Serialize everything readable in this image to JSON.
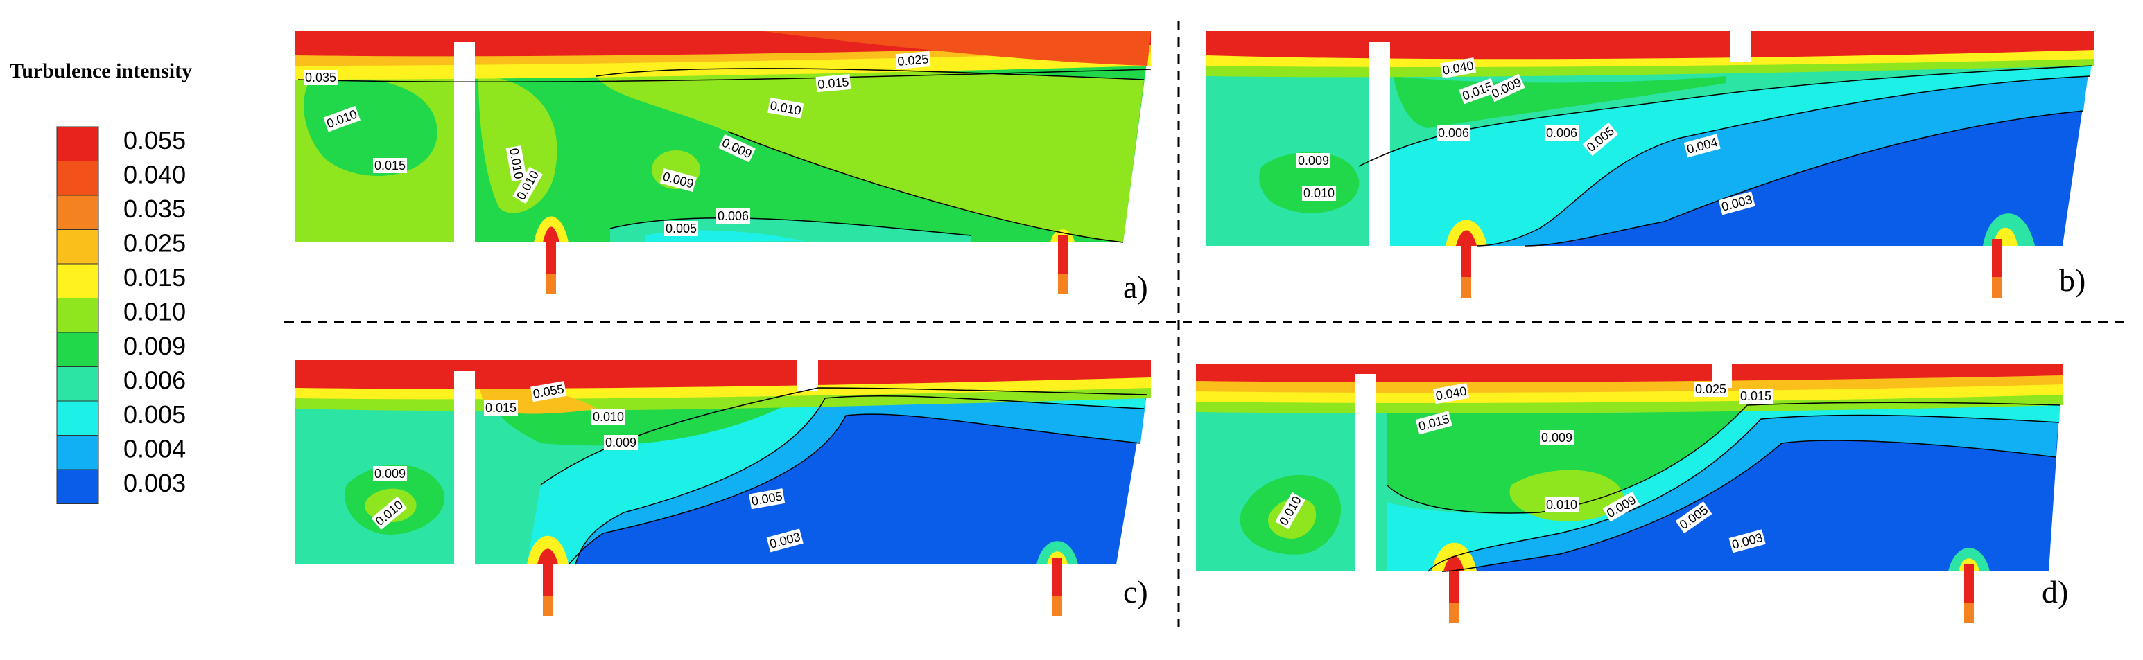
{
  "legend": {
    "title": "Turbulence intensity",
    "levels": [
      {
        "value": "0.055",
        "color": "#e8221c"
      },
      {
        "value": "0.040",
        "color": "#f2521a"
      },
      {
        "value": "0.035",
        "color": "#f58220"
      },
      {
        "value": "0.025",
        "color": "#fbbf1c"
      },
      {
        "value": "0.015",
        "color": "#fff21f"
      },
      {
        "value": "0.010",
        "color": "#8fe61f"
      },
      {
        "value": "0.009",
        "color": "#21d74a"
      },
      {
        "value": "0.006",
        "color": "#2ce4a4"
      },
      {
        "value": "0.005",
        "color": "#1df0e6"
      },
      {
        "value": "0.004",
        "color": "#11b0f4"
      },
      {
        "value": "0.003",
        "color": "#0a5de8"
      }
    ],
    "min_color": "#0a2be0"
  },
  "panels": [
    {
      "letter": "a)",
      "labels": [
        "0.035",
        "0.010",
        "0.015",
        "0.010",
        "0.025",
        "0.015",
        "0.010",
        "0.009",
        "0.009",
        "0.006",
        "0.005",
        "0.010"
      ]
    },
    {
      "letter": "b)",
      "labels": [
        "0.040",
        "0.015",
        "0.009",
        "0.006",
        "0.006",
        "0.005",
        "0.004",
        "0.003",
        "0.009",
        "0.010"
      ]
    },
    {
      "letter": "c)",
      "labels": [
        "0.055",
        "0.015",
        "0.010",
        "0.009",
        "0.009",
        "0.010",
        "0.005",
        "0.003"
      ]
    },
    {
      "letter": "d)",
      "labels": [
        "0.040",
        "0.015",
        "0.025",
        "0.015",
        "0.009",
        "0.010",
        "0.009",
        "0.005",
        "0.003",
        "0.010"
      ]
    }
  ]
}
